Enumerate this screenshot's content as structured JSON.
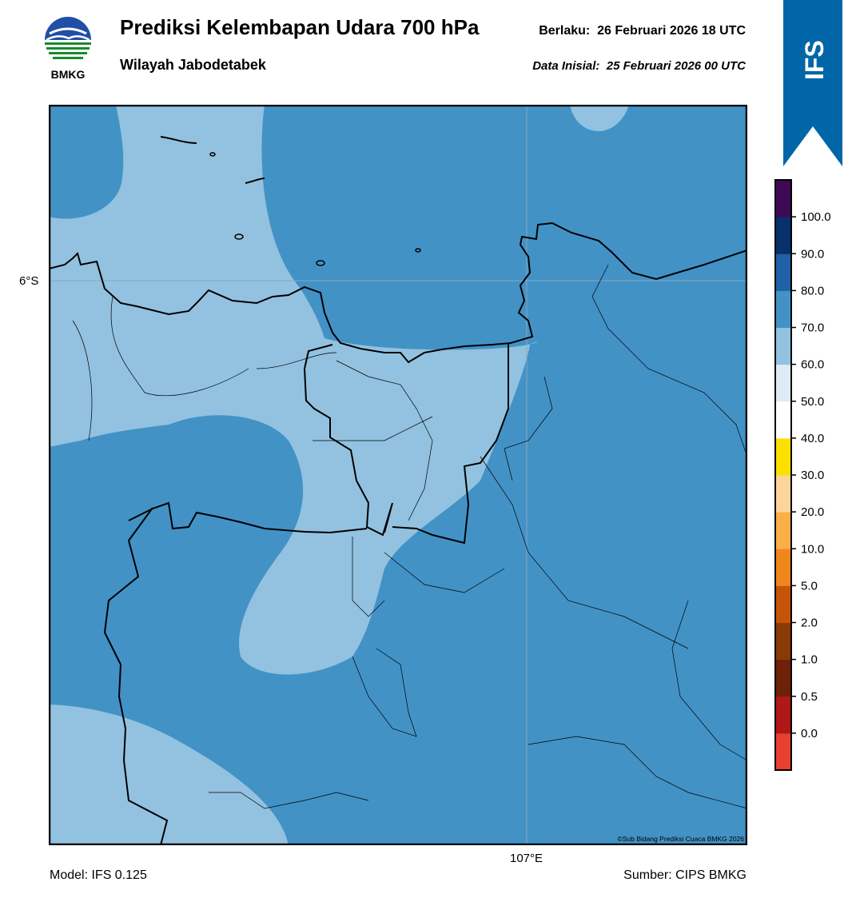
{
  "header": {
    "agency": "BMKG",
    "title": "Prediksi Kelembapan Udara 700 hPa",
    "subtitle": "Wilayah Jabodetabek",
    "valid_label": "Berlaku:",
    "valid_time": "26 Februari 2026 18 UTC",
    "init_label": "Data Inisial:",
    "init_time": "25 Februari 2026 00 UTC"
  },
  "ribbon": {
    "text": "IFS",
    "color": "#0066a8"
  },
  "map": {
    "lat_label": "6°S",
    "lon_label": "107°E",
    "copyright": "©Sub Bidang Prediksi Cuaca BMKG 2026",
    "colors": {
      "band_60_70": "#92c2df",
      "band_70_80": "#4292c6",
      "band_80_90": "#2060a8"
    }
  },
  "colorbar": {
    "labels": [
      "0.0",
      "0.5",
      "1.0",
      "2.0",
      "5.0",
      "10.0",
      "20.0",
      "30.0",
      "40.0",
      "50.0",
      "60.0",
      "70.0",
      "80.0",
      "90.0",
      "100.0"
    ],
    "colors": [
      "#e8402f",
      "#b01818",
      "#6e2008",
      "#8a3a08",
      "#c65408",
      "#f0861c",
      "#fcae48",
      "#fdd49a",
      "#fce000",
      "#ffffff",
      "#deebf7",
      "#92c2df",
      "#4292c6",
      "#2060a8",
      "#08306b",
      "#3f0a55"
    ]
  },
  "footer": {
    "model": "Model: IFS 0.125",
    "source": "Sumber: CIPS BMKG"
  }
}
